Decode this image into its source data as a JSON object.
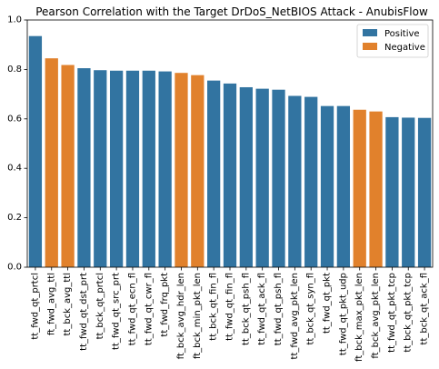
{
  "chart_data": {
    "type": "bar",
    "title": "Pearson Correlation with the Target DrDoS_NetBIOS Attack - AnubisFlow",
    "xlabel": "",
    "ylabel": "",
    "ylim": [
      0,
      1.0
    ],
    "yticks": [
      "0.0",
      "0.2",
      "0.4",
      "0.6",
      "0.8",
      "1.0"
    ],
    "grid": false,
    "legend": {
      "placement": "top-right",
      "entries": [
        {
          "name": "Positive",
          "color": "#3274a1"
        },
        {
          "name": "Negative",
          "color": "#e1812c"
        }
      ]
    },
    "categories": [
      "tt_fwd_qt_prtcl",
      "ft_fwd_avg_ttl",
      "tt_bck_avg_ttl",
      "tt_fwd_qt_dst_prt",
      "tt_bck_qt_prtcl",
      "tt_fwd_qt_src_prt",
      "tt_fwd_qt_ecn_fl",
      "tt_fwd_qt_cwr_fl",
      "tt_fwd_frq_pkt",
      "ft_bck_avg_hdr_len",
      "ft_bck_min_pkt_len",
      "tt_bck_qt_fin_fl",
      "tt_fwd_qt_fin_fl",
      "tt_bck_qt_psh_fl",
      "tt_fwd_qt_ack_fl",
      "tt_fwd_qt_psh_fl",
      "tt_fwd_avg_pkt_len",
      "tt_bck_qt_syn_fl",
      "tt_fwd_qt_pkt",
      "tt_fwd_qt_pkt_udp",
      "ft_bck_max_pkt_len",
      "ft_bck_avg_pkt_len",
      "tt_fwd_qt_pkt_tcp",
      "tt_bck_qt_pkt_tcp",
      "tt_bck_qt_ack_fl"
    ],
    "values": [
      0.935,
      0.845,
      0.818,
      0.805,
      0.797,
      0.795,
      0.795,
      0.795,
      0.792,
      0.786,
      0.777,
      0.755,
      0.743,
      0.728,
      0.722,
      0.718,
      0.693,
      0.689,
      0.652,
      0.652,
      0.637,
      0.63,
      0.607,
      0.605,
      0.604
    ],
    "signs": [
      "Positive",
      "Negative",
      "Negative",
      "Positive",
      "Positive",
      "Positive",
      "Positive",
      "Positive",
      "Positive",
      "Negative",
      "Negative",
      "Positive",
      "Positive",
      "Positive",
      "Positive",
      "Positive",
      "Positive",
      "Positive",
      "Positive",
      "Positive",
      "Negative",
      "Negative",
      "Positive",
      "Positive",
      "Positive"
    ]
  }
}
